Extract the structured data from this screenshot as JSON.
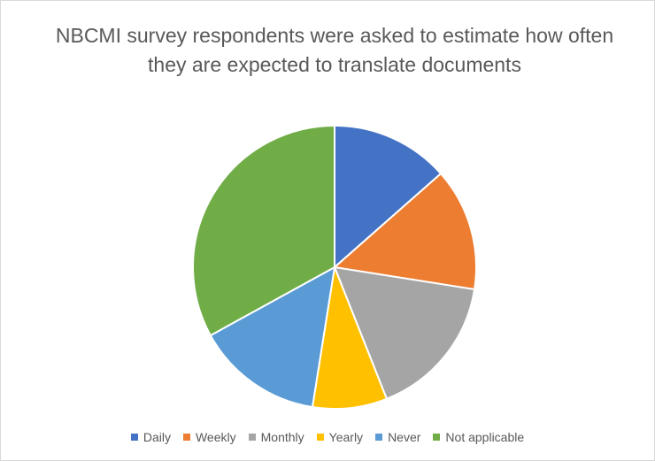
{
  "chart_data": {
    "type": "pie",
    "title": "NBCMI survey respondents were asked to estimate how often they are expected to translate documents",
    "categories": [
      "Daily",
      "Weekly",
      "Monthly",
      "Yearly",
      "Never",
      "Not applicable"
    ],
    "values": [
      13.5,
      14,
      16.5,
      8.5,
      14.5,
      33
    ],
    "colors": [
      "#4472c4",
      "#ed7d31",
      "#a5a5a5",
      "#ffc000",
      "#5b9bd5",
      "#70ad47"
    ],
    "legend": "bottom"
  }
}
